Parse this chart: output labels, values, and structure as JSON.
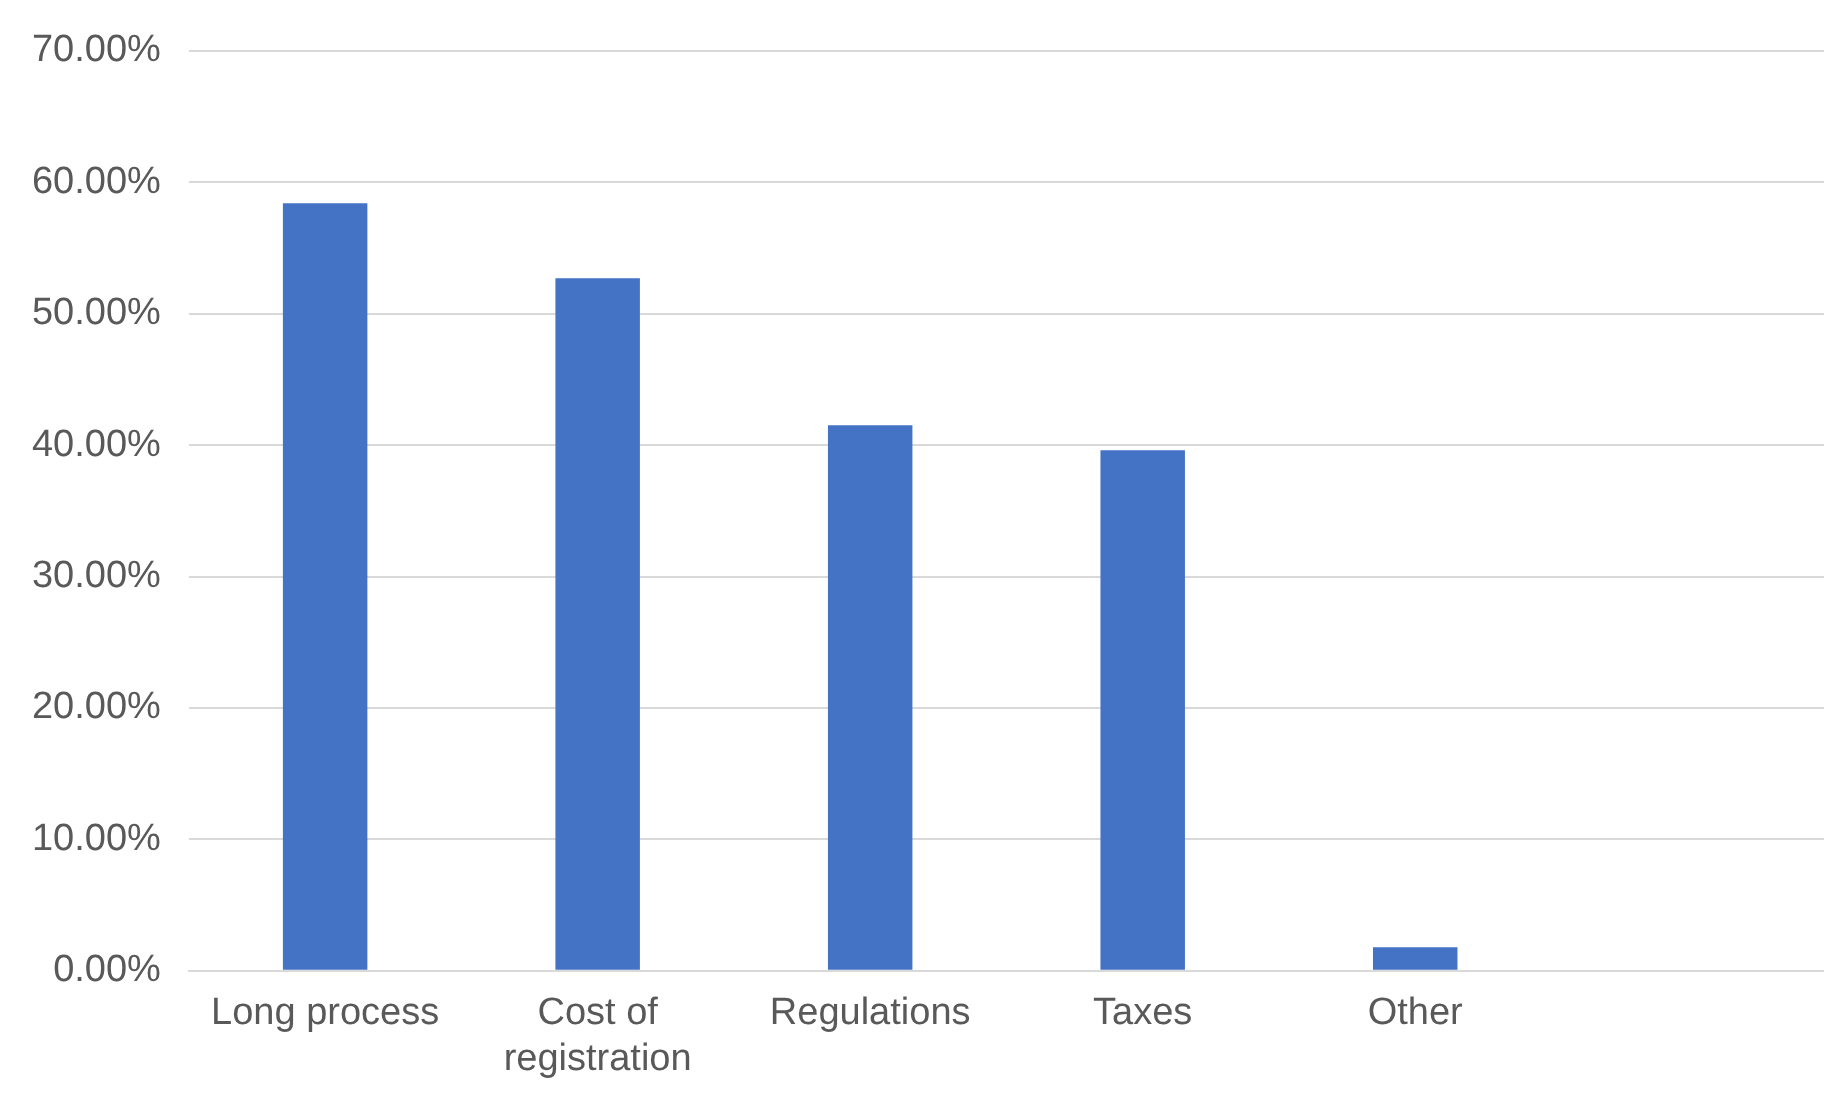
{
  "chart_data": {
    "type": "bar",
    "categories": [
      "Long process",
      "Cost of registration",
      "Regulations",
      "Taxes",
      "Other",
      null
    ],
    "values": [
      58.4,
      52.7,
      41.5,
      39.6,
      1.8,
      null
    ],
    "color": "#4472c4",
    "ylim": [
      0,
      70
    ],
    "yticks": [
      {
        "value": 0,
        "label": "0.00%"
      },
      {
        "value": 10,
        "label": "10.00%"
      },
      {
        "value": 20,
        "label": "20.00%"
      },
      {
        "value": 30,
        "label": "30.00%"
      },
      {
        "value": 40,
        "label": "40.00%"
      },
      {
        "value": 50,
        "label": "50.00%"
      },
      {
        "value": 60,
        "label": "60.00%"
      },
      {
        "value": 70,
        "label": "70.00%"
      }
    ],
    "grid": "y",
    "legend": false
  }
}
